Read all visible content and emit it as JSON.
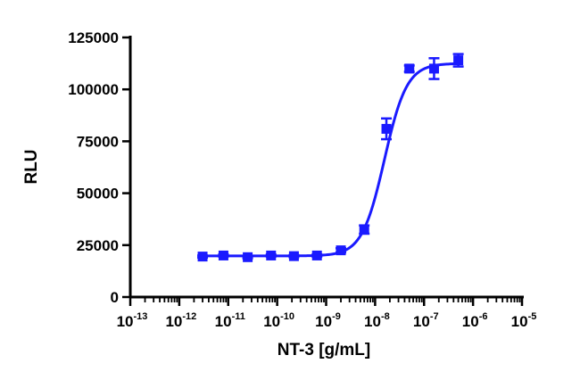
{
  "chart_data": {
    "type": "scatter",
    "title": "",
    "xlabel": "NT-3 [g/mL]",
    "ylabel": "RLU",
    "x_scale": "log10",
    "xlim": [
      1e-13,
      1e-05
    ],
    "ylim": [
      0,
      125000
    ],
    "x_tick_labels": [
      {
        "base": "10",
        "exp": "-13"
      },
      {
        "base": "10",
        "exp": "-12"
      },
      {
        "base": "10",
        "exp": "-11"
      },
      {
        "base": "10",
        "exp": "-10"
      },
      {
        "base": "10",
        "exp": "-9"
      },
      {
        "base": "10",
        "exp": "-8"
      },
      {
        "base": "10",
        "exp": "-7"
      },
      {
        "base": "10",
        "exp": "-6"
      },
      {
        "base": "10",
        "exp": "-5"
      }
    ],
    "y_tick_labels": [
      "0",
      "25000",
      "50000",
      "75000",
      "100000",
      "125000"
    ],
    "grid": false,
    "legend": "none",
    "series": [
      {
        "color": "#1a1aff",
        "marker": "square",
        "x": [
          3e-12,
          8e-12,
          2.5e-11,
          7.5e-11,
          2.2e-10,
          6.5e-10,
          2e-09,
          6e-09,
          1.7e-08,
          5e-08,
          1.6e-07,
          5e-07
        ],
        "y": [
          19500,
          20000,
          19200,
          20000,
          19700,
          20000,
          22500,
          32500,
          81000,
          110000,
          110000,
          114000
        ],
        "error": [
          500,
          500,
          500,
          500,
          500,
          500,
          1000,
          2000,
          5000,
          1500,
          5000,
          3000
        ]
      }
    ],
    "fit_curve": {
      "model": "4PL",
      "bottom": 19800,
      "top": 112500,
      "ec50": 1.55e-08,
      "hill": 1.9,
      "color": "#1a1aff"
    }
  }
}
